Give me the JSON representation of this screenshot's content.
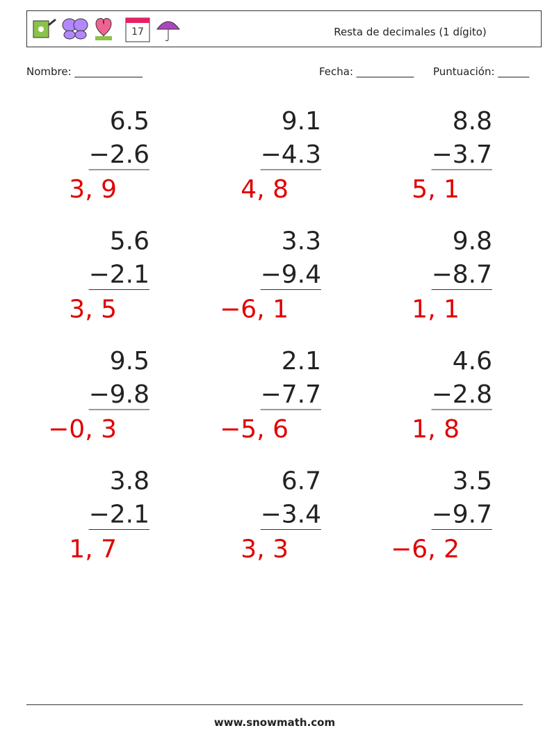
{
  "header": {
    "title": "Resta de decimales (1 dígito)"
  },
  "fields": {
    "name": "Nombre: _____________",
    "date": "Fecha: ___________",
    "score": "Puntuación: ______"
  },
  "problems": [
    {
      "top": "6.5",
      "bottom": "−2.6",
      "answer": "3, 9"
    },
    {
      "top": "9.1",
      "bottom": "−4.3",
      "answer": "4, 8"
    },
    {
      "top": "8.8",
      "bottom": "−3.7",
      "answer": "5, 1"
    },
    {
      "top": "5.6",
      "bottom": "−2.1",
      "answer": "3, 5"
    },
    {
      "top": "3.3",
      "bottom": "−9.4",
      "answer": "−6, 1"
    },
    {
      "top": "9.8",
      "bottom": "−8.7",
      "answer": "1, 1"
    },
    {
      "top": "9.5",
      "bottom": "−9.8",
      "answer": "−0, 3"
    },
    {
      "top": "2.1",
      "bottom": "−7.7",
      "answer": "−5, 6"
    },
    {
      "top": "4.6",
      "bottom": "−2.8",
      "answer": "1, 8"
    },
    {
      "top": "3.8",
      "bottom": "−2.1",
      "answer": "1, 7"
    },
    {
      "top": "6.7",
      "bottom": "−3.4",
      "answer": "3, 3"
    },
    {
      "top": "3.5",
      "bottom": "−9.7",
      "answer": "−6, 2"
    }
  ],
  "footer": {
    "url": "www.snowmath.com"
  }
}
